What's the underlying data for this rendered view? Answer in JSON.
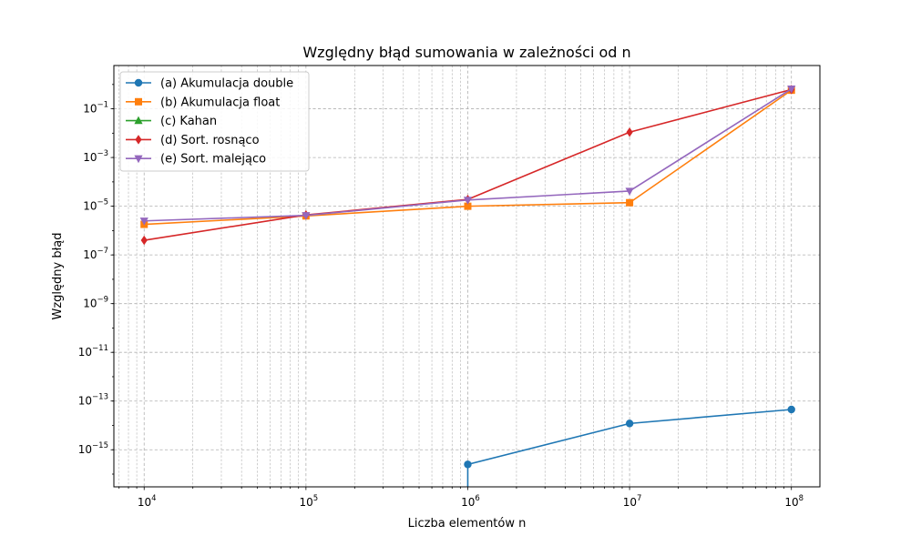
{
  "chart_data": {
    "type": "line",
    "title": "Względny błąd sumowania w zależności od n",
    "xlabel": "Liczba elementów n",
    "ylabel": "Względny błąd",
    "xscale": "log",
    "yscale": "log",
    "xlim": [
      6500,
      150000000
    ],
    "ylim": [
      3e-17,
      6
    ],
    "grid": true,
    "legend_position": "top-left",
    "x_ticks": [
      {
        "value": 10000,
        "base": "10",
        "exp": "4"
      },
      {
        "value": 100000,
        "base": "10",
        "exp": "5"
      },
      {
        "value": 1000000,
        "base": "10",
        "exp": "6"
      },
      {
        "value": 10000000,
        "base": "10",
        "exp": "7"
      },
      {
        "value": 100000000,
        "base": "10",
        "exp": "8"
      }
    ],
    "y_ticks": [
      {
        "value": 1e-15,
        "base": "10",
        "exp": "−15"
      },
      {
        "value": 1e-13,
        "base": "10",
        "exp": "−13"
      },
      {
        "value": 1e-11,
        "base": "10",
        "exp": "−11"
      },
      {
        "value": 1e-09,
        "base": "10",
        "exp": "−9"
      },
      {
        "value": 1e-07,
        "base": "10",
        "exp": "−7"
      },
      {
        "value": 1e-05,
        "base": "10",
        "exp": "−5"
      },
      {
        "value": 0.001,
        "base": "10",
        "exp": "−3"
      },
      {
        "value": 0.1,
        "base": "10",
        "exp": "−1"
      }
    ],
    "series": [
      {
        "name": "(a) Akumulacja double",
        "color": "#1f77b4",
        "marker": "circle",
        "x": [
          10000,
          100000,
          1000000,
          10000000,
          100000000
        ],
        "y": [
          0,
          0,
          2.5e-16,
          1.2e-14,
          4.5e-14
        ]
      },
      {
        "name": "(b) Akumulacja float",
        "color": "#ff7f0e",
        "marker": "square",
        "x": [
          10000,
          100000,
          1000000,
          10000000,
          100000000
        ],
        "y": [
          1.8e-06,
          4e-06,
          1e-05,
          1.4e-05,
          0.58
        ]
      },
      {
        "name": "(c) Kahan",
        "color": "#2ca02c",
        "marker": "triangle-up",
        "x": [
          10000,
          100000,
          1000000,
          10000000,
          100000000
        ],
        "y": [
          0,
          0,
          0,
          0,
          0
        ]
      },
      {
        "name": "(d) Sort. rosnąco",
        "color": "#d62728",
        "marker": "diamond",
        "x": [
          10000,
          100000,
          1000000,
          10000000,
          100000000
        ],
        "y": [
          4e-07,
          4.4e-06,
          1.9e-05,
          0.011,
          0.62
        ]
      },
      {
        "name": "(e) Sort. malejąco",
        "color": "#9467bd",
        "marker": "triangle-down",
        "x": [
          10000,
          100000,
          1000000,
          10000000,
          100000000
        ],
        "y": [
          2.5e-06,
          4.2e-06,
          1.8e-05,
          4.2e-05,
          0.66
        ]
      }
    ]
  }
}
